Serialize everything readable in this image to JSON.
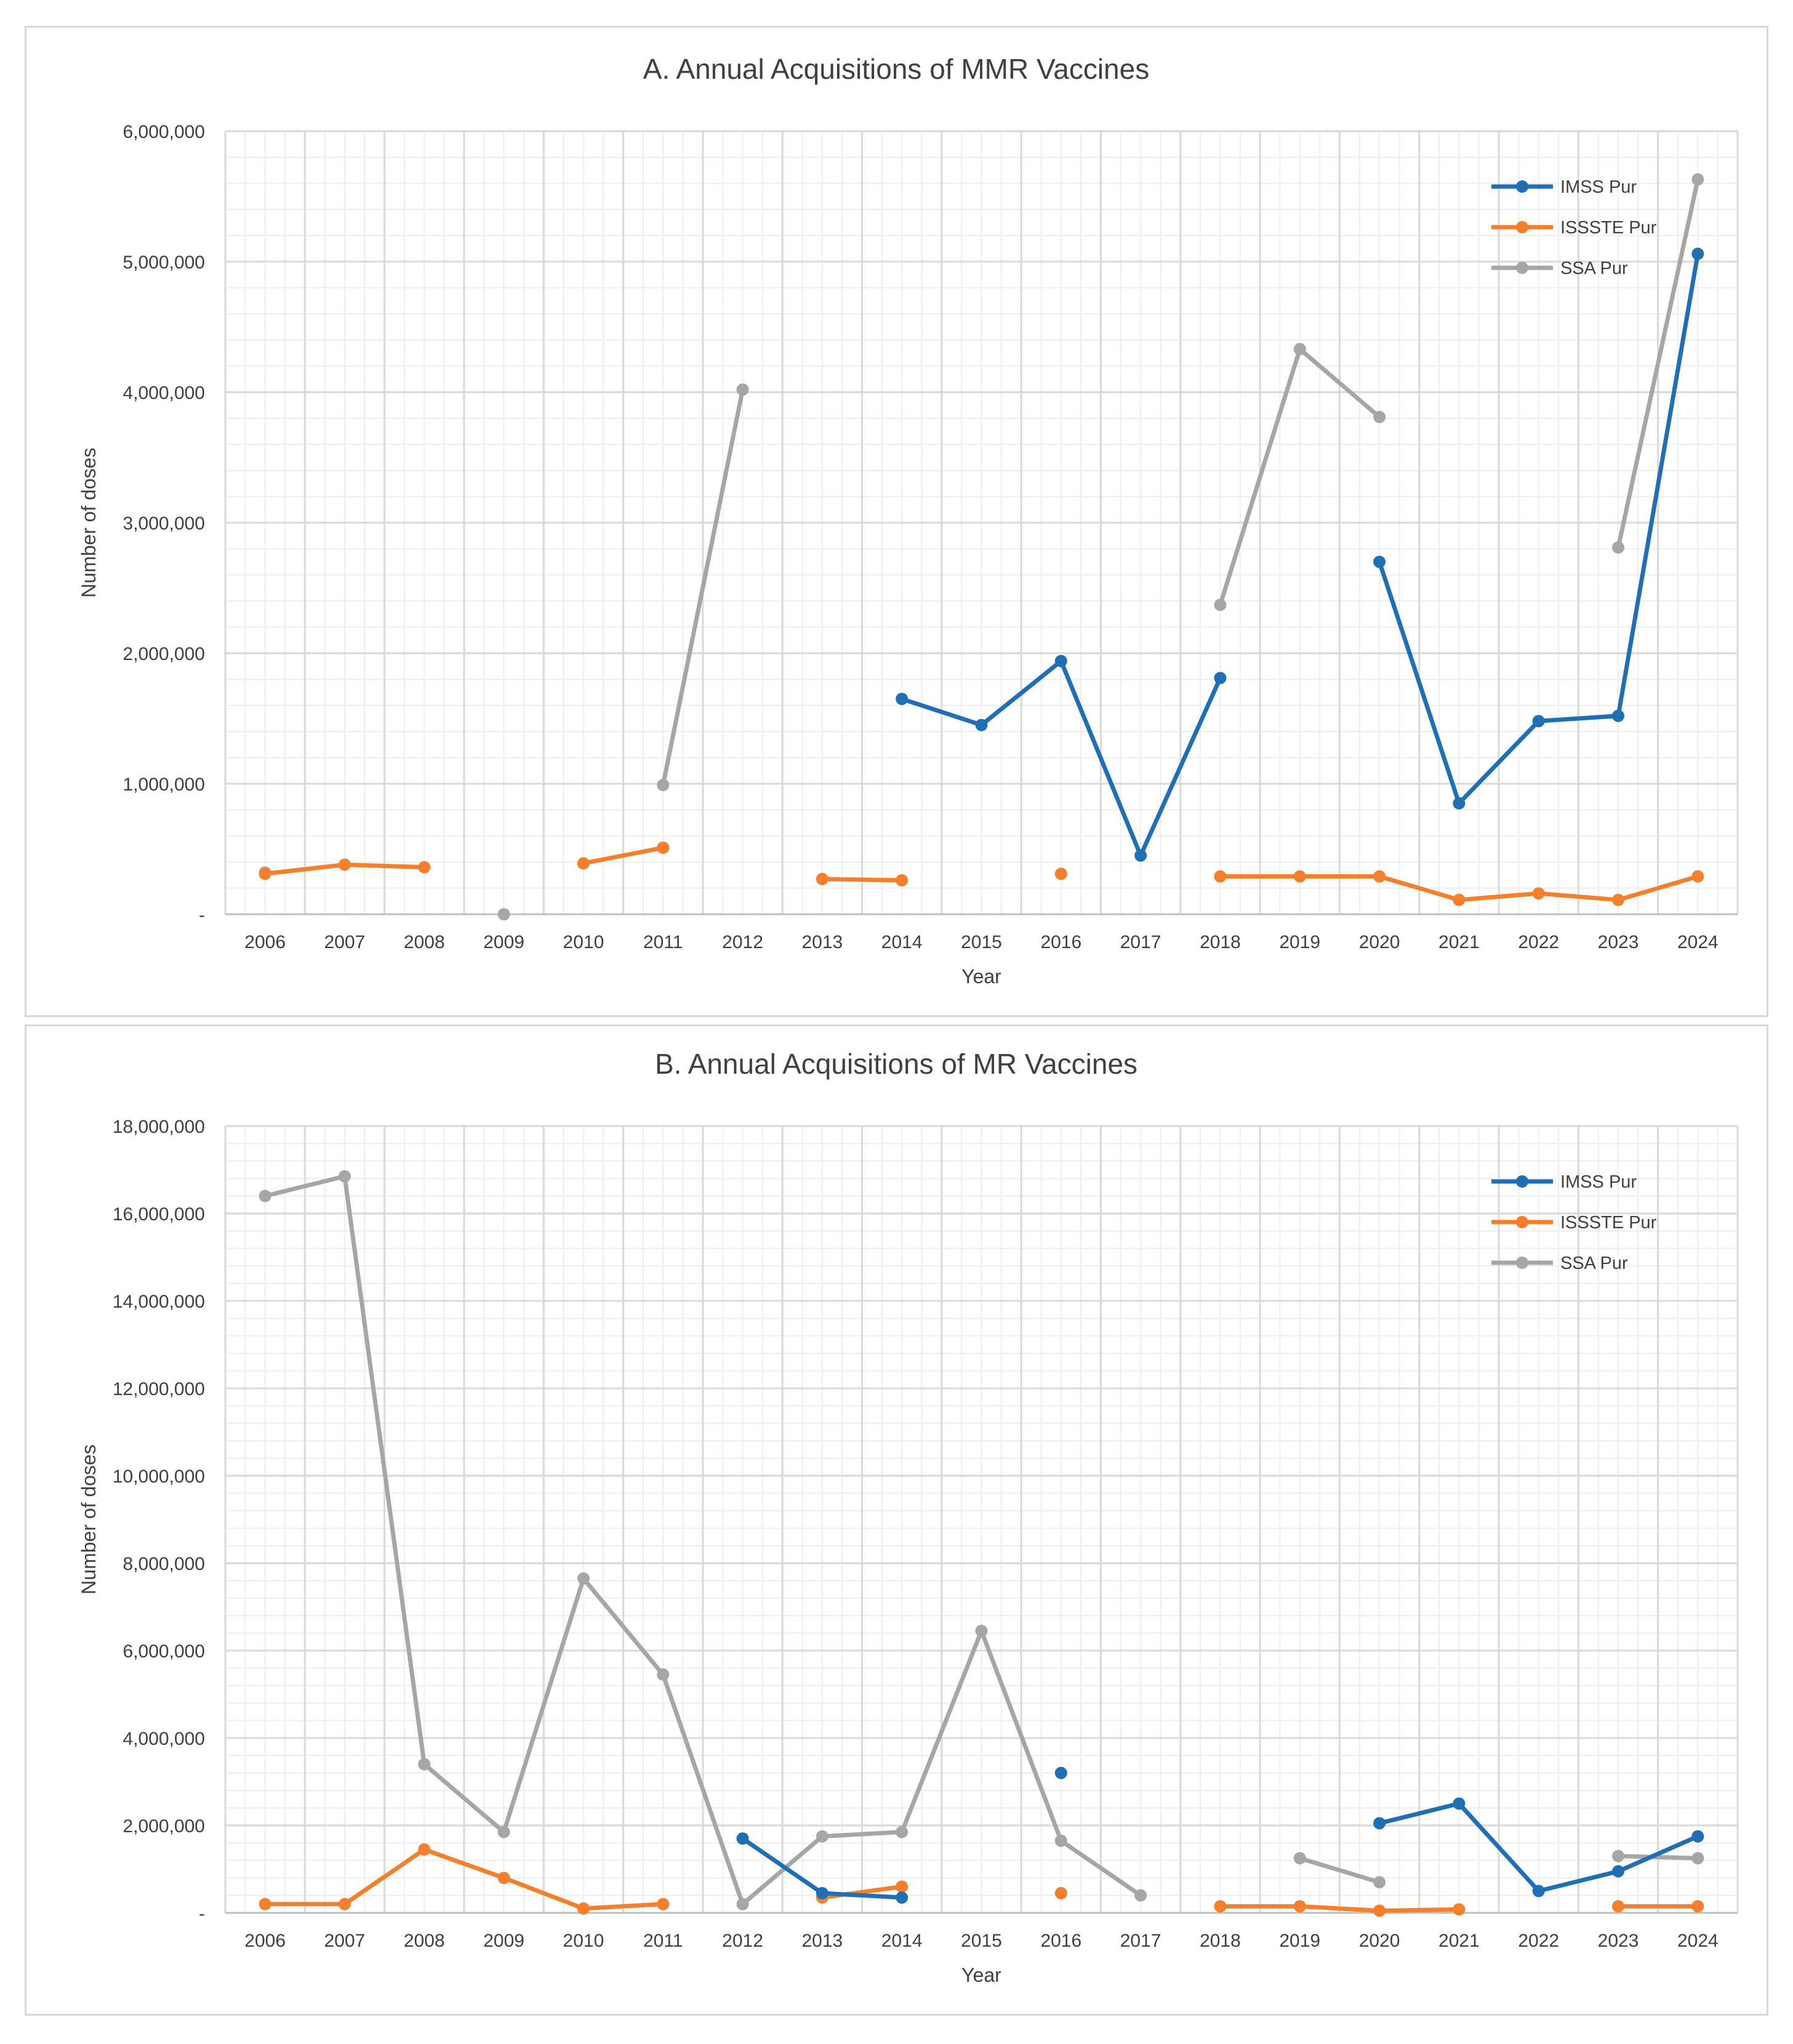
{
  "colors": {
    "imss": "#1f6fb6",
    "issste": "#f57f2a",
    "ssa": "#a6a6a6",
    "grid": "#d9d9d9",
    "text": "#404040"
  },
  "chart_data": [
    {
      "type": "line",
      "title": "A. Annual Acquisitions of MMR Vaccines",
      "xlabel": "Year",
      "ylabel": "Number of doses",
      "ylim": [
        0,
        6000000
      ],
      "yticks": [
        {
          "value": 0,
          "label": "-"
        },
        {
          "value": 1000000,
          "label": "1,000,000"
        },
        {
          "value": 2000000,
          "label": "2,000,000"
        },
        {
          "value": 3000000,
          "label": "3,000,000"
        },
        {
          "value": 4000000,
          "label": "4,000,000"
        },
        {
          "value": 5000000,
          "label": "5,000,000"
        },
        {
          "value": 6000000,
          "label": "6,000,000"
        }
      ],
      "categories": [
        "2006",
        "2007",
        "2008",
        "2009",
        "2010",
        "2011",
        "2012",
        "2013",
        "2014",
        "2015",
        "2016",
        "2017",
        "2018",
        "2019",
        "2020",
        "2021",
        "2022",
        "2023",
        "2024"
      ],
      "grid": true,
      "legend_position": "top-right",
      "series": [
        {
          "name": "IMSS Pur",
          "color_key": "imss",
          "values": [
            null,
            null,
            null,
            null,
            null,
            null,
            null,
            null,
            1650000,
            1450000,
            1940000,
            450000,
            1810000,
            null,
            2700000,
            850000,
            1480000,
            1520000,
            5060000
          ]
        },
        {
          "name": "ISSSTE Pur",
          "color_key": "issste",
          "values": [
            310000,
            380000,
            360000,
            null,
            390000,
            510000,
            null,
            270000,
            260000,
            null,
            310000,
            null,
            290000,
            290000,
            290000,
            110000,
            160000,
            110000,
            290000
          ]
        },
        {
          "name": "SSA Pur",
          "color_key": "ssa",
          "values": [
            320000,
            null,
            null,
            0,
            null,
            990000,
            4020000,
            null,
            null,
            null,
            null,
            null,
            2370000,
            4330000,
            3810000,
            null,
            null,
            2810000,
            5630000
          ]
        }
      ]
    },
    {
      "type": "line",
      "title": "B. Annual Acquisitions of MR Vaccines",
      "xlabel": "Year",
      "ylabel": "Number of doses",
      "ylim": [
        0,
        18000000
      ],
      "yticks": [
        {
          "value": 0,
          "label": "-"
        },
        {
          "value": 2000000,
          "label": "2,000,000"
        },
        {
          "value": 4000000,
          "label": "4,000,000"
        },
        {
          "value": 6000000,
          "label": "6,000,000"
        },
        {
          "value": 8000000,
          "label": "8,000,000"
        },
        {
          "value": 10000000,
          "label": "10,000,000"
        },
        {
          "value": 12000000,
          "label": "12,000,000"
        },
        {
          "value": 14000000,
          "label": "14,000,000"
        },
        {
          "value": 16000000,
          "label": "16,000,000"
        },
        {
          "value": 18000000,
          "label": "18,000,000"
        }
      ],
      "categories": [
        "2006",
        "2007",
        "2008",
        "2009",
        "2010",
        "2011",
        "2012",
        "2013",
        "2014",
        "2015",
        "2016",
        "2017",
        "2018",
        "2019",
        "2020",
        "2021",
        "2022",
        "2023",
        "2024"
      ],
      "grid": true,
      "legend_position": "top-right",
      "series": [
        {
          "name": "IMSS Pur",
          "color_key": "imss",
          "values": [
            null,
            null,
            null,
            null,
            null,
            null,
            1700000,
            450000,
            350000,
            null,
            3200000,
            null,
            null,
            null,
            2050000,
            2500000,
            500000,
            950000,
            1750000
          ]
        },
        {
          "name": "ISSSTE Pur",
          "color_key": "issste",
          "values": [
            200000,
            200000,
            1450000,
            800000,
            100000,
            200000,
            null,
            350000,
            600000,
            null,
            450000,
            null,
            150000,
            150000,
            50000,
            80000,
            null,
            150000,
            150000
          ]
        },
        {
          "name": "SSA Pur",
          "color_key": "ssa",
          "values": [
            16400000,
            16850000,
            3400000,
            1850000,
            7650000,
            5450000,
            200000,
            1750000,
            1850000,
            6450000,
            1650000,
            400000,
            null,
            1250000,
            700000,
            null,
            null,
            1300000,
            1250000
          ]
        }
      ]
    }
  ]
}
